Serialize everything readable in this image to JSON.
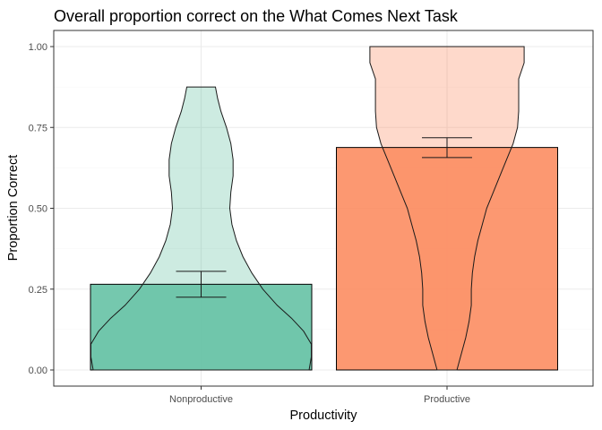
{
  "chart_data": {
    "type": "bar",
    "title": "Overall proportion correct on the What Comes Next Task",
    "xlabel": "Productivity",
    "ylabel": "Proportion Correct",
    "ylim": [
      0,
      1
    ],
    "yticks": [
      0,
      0.25,
      0.5,
      0.75,
      1
    ],
    "ytick_labels": [
      "0.00",
      "0.25",
      "0.50",
      "0.75",
      "1.00"
    ],
    "grid": true,
    "categories": [
      "Nonproductive",
      "Productive"
    ],
    "values": [
      0.265,
      0.688
    ],
    "error_bars": [
      {
        "low": 0.225,
        "high": 0.305
      },
      {
        "low": 0.657,
        "high": 0.718
      }
    ],
    "colors": [
      "#66c2a5",
      "#fc8d62"
    ],
    "violins": [
      {
        "category": "Nonproductive",
        "profile": [
          [
            0.0,
            0.98
          ],
          [
            0.04,
            1.0
          ],
          [
            0.08,
            1.0
          ],
          [
            0.12,
            0.93
          ],
          [
            0.16,
            0.82
          ],
          [
            0.2,
            0.69
          ],
          [
            0.25,
            0.56
          ],
          [
            0.3,
            0.46
          ],
          [
            0.35,
            0.38
          ],
          [
            0.4,
            0.32
          ],
          [
            0.45,
            0.28
          ],
          [
            0.5,
            0.26
          ],
          [
            0.55,
            0.27
          ],
          [
            0.6,
            0.29
          ],
          [
            0.65,
            0.29
          ],
          [
            0.7,
            0.27
          ],
          [
            0.75,
            0.23
          ],
          [
            0.8,
            0.18
          ],
          [
            0.84,
            0.15
          ],
          [
            0.875,
            0.13
          ]
        ]
      },
      {
        "category": "Productive",
        "profile": [
          [
            0.0,
            0.09
          ],
          [
            0.05,
            0.13
          ],
          [
            0.1,
            0.17
          ],
          [
            0.15,
            0.2
          ],
          [
            0.2,
            0.22
          ],
          [
            0.25,
            0.22
          ],
          [
            0.3,
            0.23
          ],
          [
            0.35,
            0.25
          ],
          [
            0.4,
            0.28
          ],
          [
            0.45,
            0.32
          ],
          [
            0.5,
            0.36
          ],
          [
            0.55,
            0.42
          ],
          [
            0.6,
            0.48
          ],
          [
            0.65,
            0.54
          ],
          [
            0.7,
            0.6
          ],
          [
            0.75,
            0.64
          ],
          [
            0.8,
            0.65
          ],
          [
            0.85,
            0.65
          ],
          [
            0.9,
            0.65
          ],
          [
            0.95,
            0.7
          ],
          [
            1.0,
            0.7
          ]
        ]
      }
    ]
  }
}
